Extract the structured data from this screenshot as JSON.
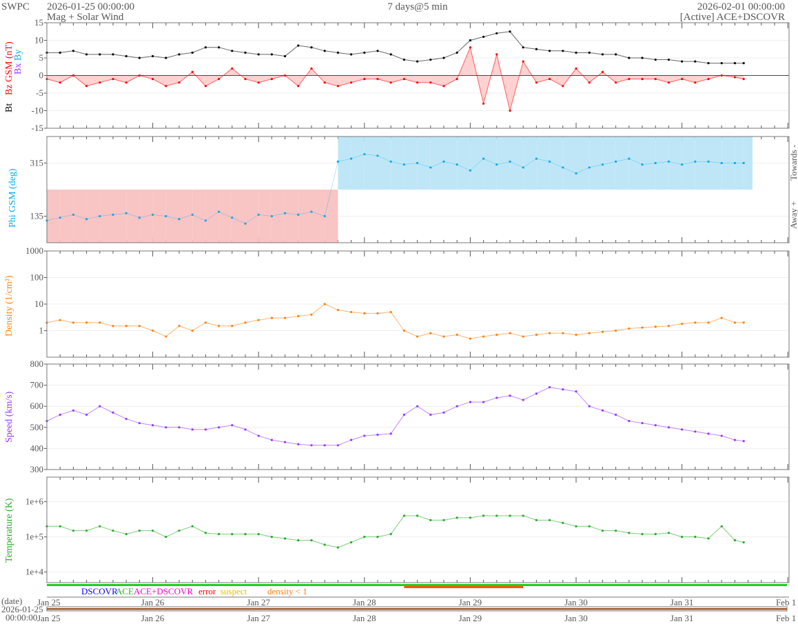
{
  "header": {
    "brand": "SWPC",
    "start_time": "2026-01-25 00:00:00",
    "subtitle": "Mag + Solar Wind",
    "span": "7 days@5 min",
    "end_time": "2026-02-01 00:00:00",
    "source": "[Active] ACE+DSCOVR"
  },
  "colors": {
    "bt": "#000000",
    "bz": "#ff0000",
    "bx": "#9933ff",
    "by": "#00aaee",
    "phi": "#00aaee",
    "towards": "#bfe6f7",
    "away": "#f9c4c4",
    "density": "#ff7f0e",
    "speed": "#9933ff",
    "temperature": "#22aa22",
    "status_ok": "#22cc22",
    "date_bar": "#a0522d"
  },
  "chart_data": [
    {
      "type": "line",
      "id": "mag",
      "title": "Mag",
      "ylabels": {
        "bt": "Bt",
        "bz": "Bz GSM (nT)",
        "bx": "Bx",
        "by": "By"
      },
      "ylim": [
        -15,
        15
      ],
      "yticks": [
        "15",
        "10",
        "5",
        "0",
        "-5",
        "-10",
        "-15"
      ],
      "ytick_values": [
        15,
        10,
        5,
        0,
        -5,
        -10,
        -15
      ],
      "x_hours": [
        0,
        3,
        6,
        9,
        12,
        15,
        18,
        21,
        24,
        27,
        30,
        33,
        36,
        39,
        42,
        45,
        48,
        51,
        54,
        57,
        60,
        63,
        66,
        69,
        72,
        75,
        78,
        81,
        84,
        87,
        90,
        93,
        96,
        99,
        102,
        105,
        108,
        111,
        114,
        117,
        120,
        123,
        126,
        129,
        132,
        135,
        138,
        141,
        144,
        147,
        150,
        153,
        156,
        158
      ],
      "series": [
        {
          "name": "Bt",
          "values": [
            6.5,
            6.5,
            7,
            6,
            6,
            6,
            5.5,
            5,
            5.5,
            5,
            6,
            6.5,
            8,
            8,
            7,
            6.5,
            6,
            6,
            5.5,
            8.5,
            8,
            7,
            6.5,
            6,
            6.5,
            7,
            6,
            4.5,
            4,
            4.5,
            5,
            6.5,
            10,
            11,
            12,
            12.5,
            8,
            7.5,
            7,
            7,
            6.5,
            6.5,
            6,
            6,
            5,
            5,
            4.5,
            4.5,
            4,
            4,
            3.5,
            3.5,
            3.5,
            3.5
          ]
        },
        {
          "name": "Bz",
          "values": [
            -1,
            -2,
            0,
            -3,
            -2,
            -1,
            -2,
            0,
            -1,
            -3,
            -2,
            1,
            -3,
            -1,
            2,
            -1,
            -2,
            -1,
            0,
            -3,
            2,
            -2,
            -3,
            -2,
            -1,
            -1,
            -2,
            -1,
            -2,
            -2,
            -3,
            -1,
            8,
            -8,
            6,
            -10,
            4,
            -2,
            -1,
            -3,
            2,
            -2,
            1,
            -2,
            -1,
            -1,
            -1,
            -2,
            -1,
            -2,
            -1,
            0,
            -0.5,
            -1
          ]
        }
      ]
    },
    {
      "type": "scatter",
      "id": "phi",
      "ylabel": "Phi GSM (deg)",
      "ylim": [
        45,
        405
      ],
      "yticks": [
        "315",
        "135"
      ],
      "ytick_values": [
        315,
        135
      ],
      "right_labels": {
        "towards": "Towards -",
        "away": "Away +"
      },
      "values": [
        120,
        130,
        140,
        125,
        135,
        140,
        145,
        130,
        140,
        135,
        125,
        140,
        120,
        150,
        130,
        110,
        140,
        135,
        145,
        140,
        150,
        135,
        320,
        330,
        345,
        340,
        320,
        310,
        315,
        300,
        320,
        310,
        290,
        330,
        310,
        320,
        300,
        330,
        320,
        300,
        280,
        300,
        310,
        320,
        330,
        310,
        315,
        320,
        310,
        320,
        320,
        315,
        315,
        315
      ]
    },
    {
      "type": "line",
      "id": "density",
      "ylabel": "Density (1/cm³)",
      "scale": "log",
      "ylim": [
        0.1,
        1000
      ],
      "yticks": [
        "1000",
        "100",
        "10",
        "1"
      ],
      "ytick_values": [
        1000,
        100,
        10,
        1
      ],
      "values": [
        2,
        2.5,
        2,
        2,
        2,
        1.5,
        1.5,
        1.5,
        1,
        0.6,
        1.5,
        1,
        2,
        1.5,
        1.5,
        2,
        2.5,
        3,
        3,
        3.5,
        4,
        10,
        6,
        5,
        4.5,
        4.5,
        5,
        1,
        0.6,
        0.8,
        0.6,
        0.7,
        0.5,
        0.6,
        0.7,
        0.8,
        0.6,
        0.7,
        0.8,
        0.8,
        0.7,
        0.8,
        0.9,
        1,
        1.2,
        1.3,
        1.4,
        1.5,
        1.8,
        2,
        2,
        3,
        2,
        2
      ]
    },
    {
      "type": "line",
      "id": "speed",
      "ylabel": "Speed (km/s)",
      "ylim": [
        300,
        800
      ],
      "yticks": [
        "800",
        "700",
        "600",
        "500",
        "400",
        "300"
      ],
      "ytick_values": [
        800,
        700,
        600,
        500,
        400,
        300
      ],
      "values": [
        530,
        560,
        580,
        560,
        600,
        570,
        540,
        520,
        510,
        500,
        500,
        490,
        490,
        500,
        510,
        490,
        460,
        440,
        430,
        420,
        415,
        415,
        415,
        440,
        460,
        465,
        470,
        560,
        600,
        560,
        570,
        600,
        620,
        620,
        640,
        650,
        630,
        660,
        690,
        680,
        670,
        600,
        580,
        560,
        530,
        520,
        510,
        500,
        490,
        480,
        470,
        460,
        440,
        435
      ]
    },
    {
      "type": "line",
      "id": "temperature",
      "ylabel": "Temperature (K)",
      "scale": "log",
      "ylim": [
        5000,
        5000000
      ],
      "yticks": [
        "1e+6",
        "1e+5",
        "1e+4"
      ],
      "ytick_values": [
        1000000,
        100000,
        10000
      ],
      "values": [
        200000,
        200000,
        150000,
        150000,
        200000,
        150000,
        120000,
        150000,
        150000,
        100000,
        150000,
        200000,
        130000,
        120000,
        120000,
        120000,
        120000,
        100000,
        90000,
        80000,
        80000,
        60000,
        50000,
        70000,
        100000,
        100000,
        120000,
        400000,
        400000,
        300000,
        300000,
        350000,
        350000,
        400000,
        400000,
        400000,
        400000,
        300000,
        300000,
        250000,
        200000,
        200000,
        150000,
        150000,
        130000,
        120000,
        120000,
        130000,
        100000,
        100000,
        90000,
        200000,
        80000,
        70000
      ]
    }
  ],
  "status_legend": [
    {
      "label": "DSCOVR",
      "color": "#0000ff"
    },
    {
      "label": "ACE",
      "color": "#22bb22"
    },
    {
      "label": "ACE+DSCOVR",
      "color": "#ff00cc"
    },
    {
      "label": "error",
      "color": "#ff0000"
    },
    {
      "label": "suspect",
      "color": "#e6c000"
    },
    {
      "label": "density < 1",
      "color": "#ff7f0e"
    }
  ],
  "x_axis": {
    "date_label": "(date)",
    "origin_date": "2026-01-25",
    "origin_time": "00:00:00",
    "ticks": [
      "Jan 25",
      "Jan 26",
      "Jan 27",
      "Jan 28",
      "Jan 29",
      "Jan 30",
      "Jan 31",
      "Feb 1"
    ]
  }
}
